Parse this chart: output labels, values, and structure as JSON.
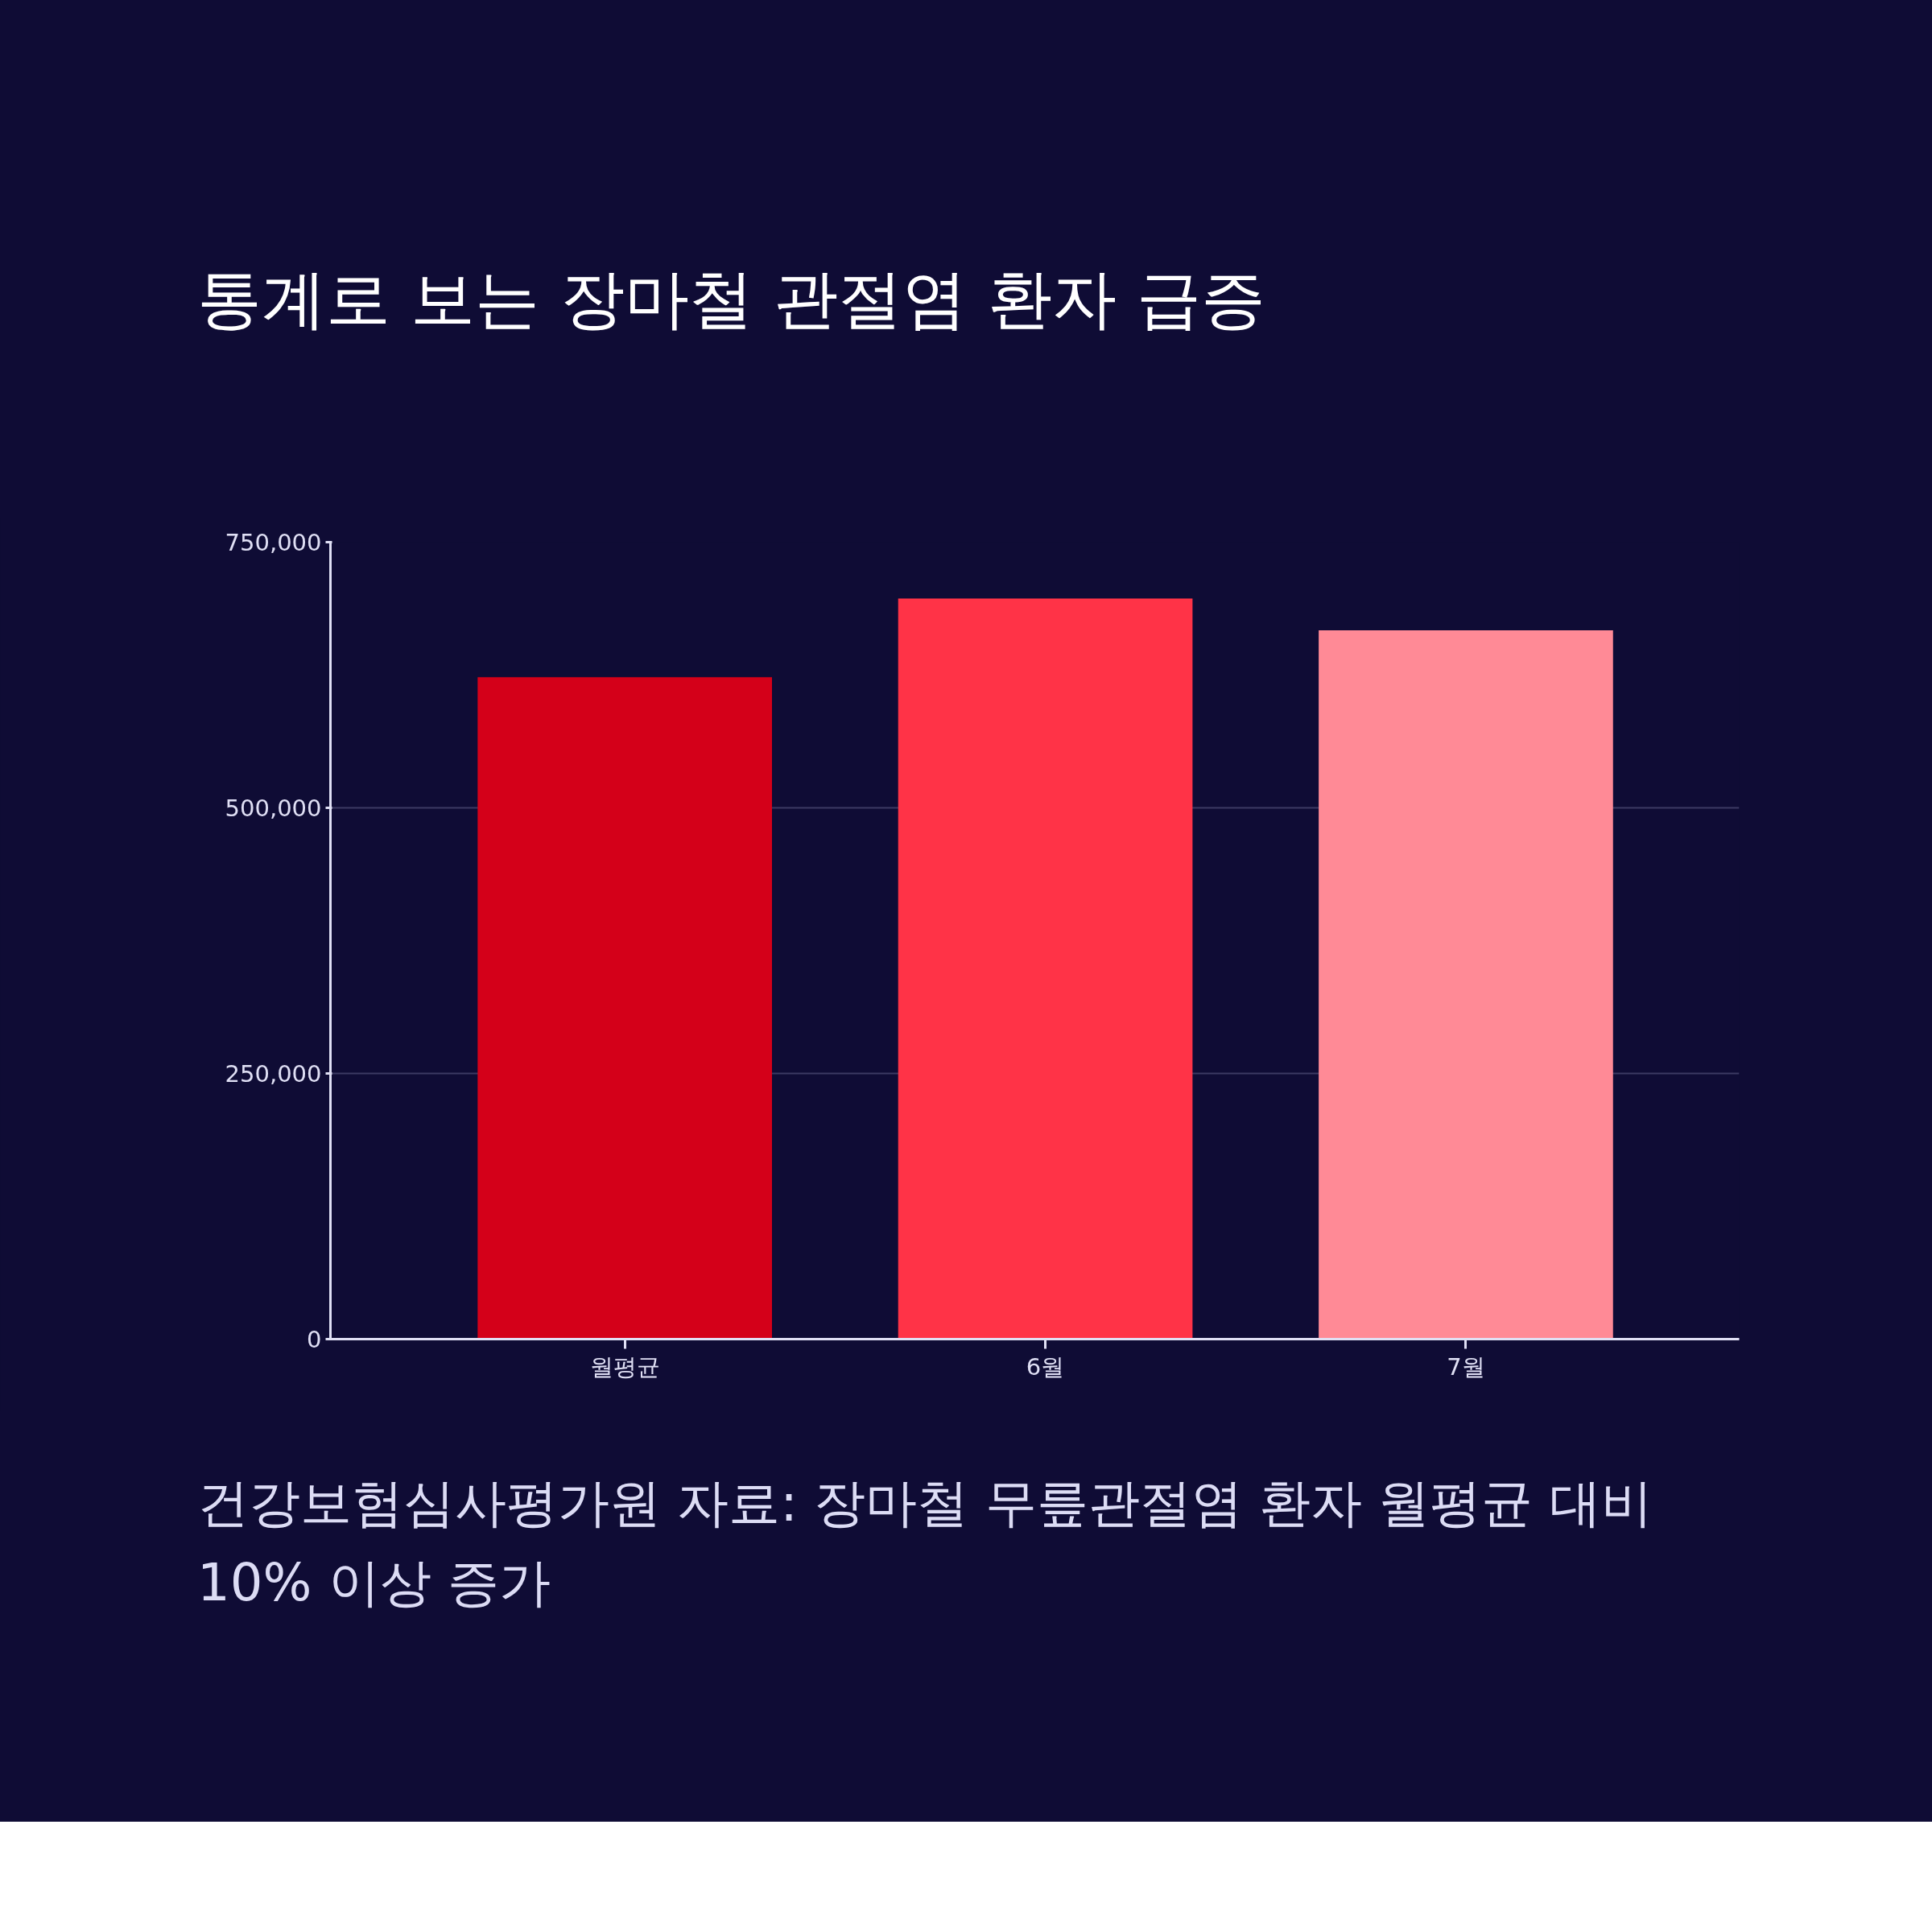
{
  "chart_data": {
    "type": "bar",
    "title": "통계로 보는 장마철 관절염 환자 급증",
    "categories": [
      "월평균",
      "6월",
      "7월"
    ],
    "values": [
      623000,
      697000,
      667000
    ],
    "colors": [
      "#d40019",
      "#ff3347",
      "#ff8a96"
    ],
    "ylim": [
      0,
      750000
    ],
    "yticks": [
      0,
      {
        "value": 250000,
        "label": "250,000"
      },
      {
        "value": 500000,
        "label": "500,000"
      },
      {
        "value": 750000,
        "label": "750,000"
      }
    ],
    "grid": "y",
    "annotations": [
      "건강보험심사평가원 자료: 장마철 무릎관절염 환자 월평균 대비 10% 이상 증가"
    ]
  }
}
